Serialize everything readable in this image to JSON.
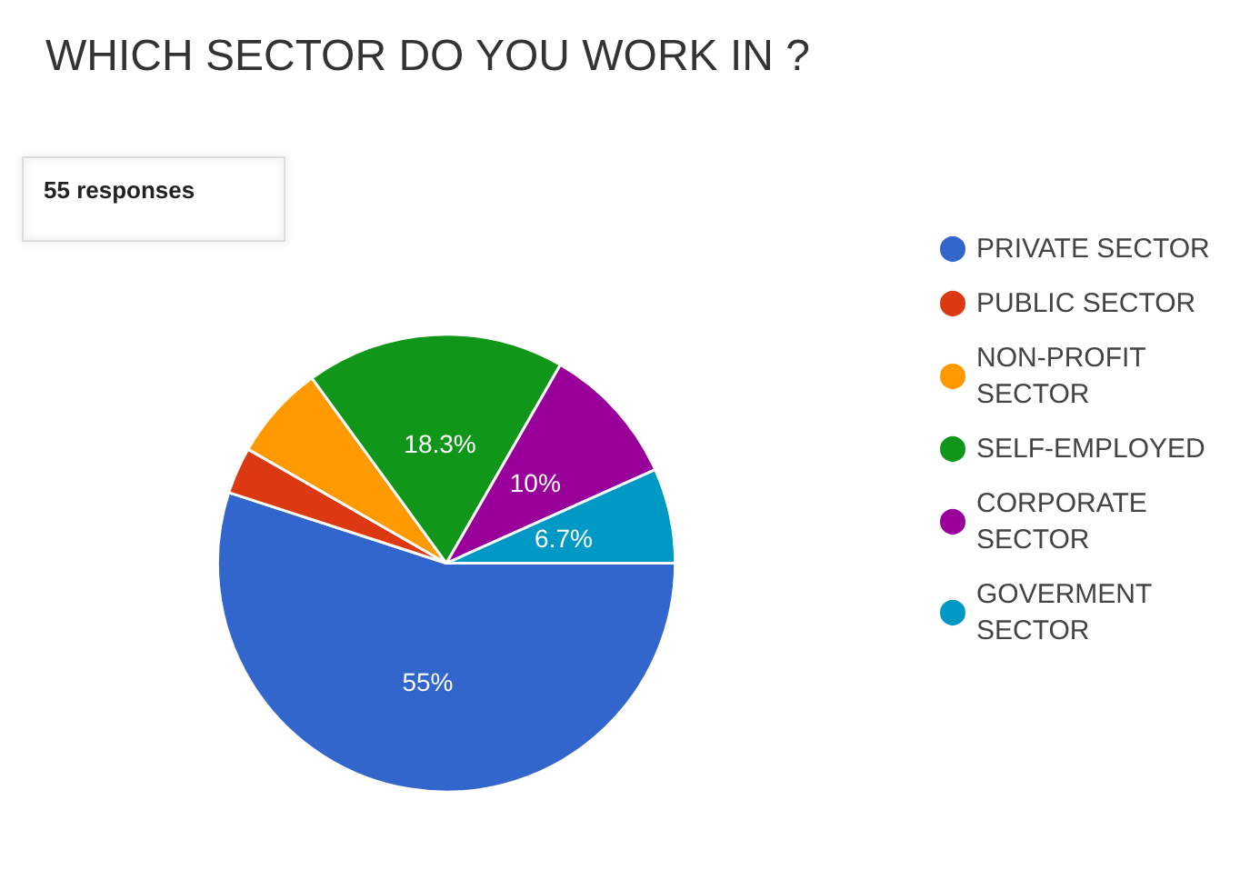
{
  "chart_data": {
    "type": "pie",
    "title": "WHICH SECTOR DO YOU WORK IN ?",
    "subtitle": "55 responses",
    "categories": [
      "PRIVATE SECTOR",
      "PUBLIC SECTOR",
      "NON-PROFIT SECTOR",
      "SELF-EMPLOYED",
      "CORPORATE SECTOR",
      "GOVERMENT SECTOR"
    ],
    "values": [
      55,
      3.3,
      6.7,
      18.3,
      10,
      6.7
    ],
    "value_labels": [
      "55%",
      null,
      null,
      "18.3%",
      "10%",
      "6.7%"
    ],
    "colors": [
      "#3366cc",
      "#dc3912",
      "#ff9900",
      "#109618",
      "#990099",
      "#0099c6"
    ],
    "legend": "right"
  }
}
